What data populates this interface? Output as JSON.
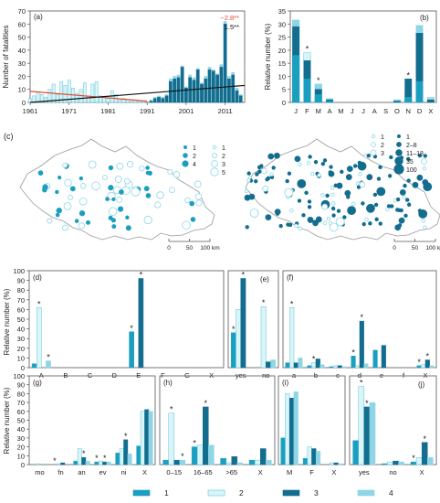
{
  "colors": {
    "c1": "#1b9fc0",
    "c2": "#d9f5f8",
    "c3": "#136d8f",
    "c4": "#8ed6e6",
    "edge2": "#5ec3d8",
    "axis": "#555555",
    "trend_black": "#111111",
    "trend_red": "#e8472a"
  },
  "legend": {
    "items": [
      {
        "label": "1",
        "color": "c1"
      },
      {
        "label": "2",
        "color": "c2"
      },
      {
        "label": "3",
        "color": "c3"
      },
      {
        "label": "4",
        "color": "c4"
      }
    ]
  },
  "panel_c": {
    "label": "(c)",
    "scalebar": {
      "ticks": [
        "0",
        "50",
        "100 km"
      ]
    },
    "map1_legend": [
      {
        "label": "1",
        "shape": "dot",
        "color": "c1"
      },
      {
        "label": "2",
        "shape": "dot",
        "color": "c1"
      },
      {
        "label": "4",
        "shape": "dot",
        "color": "c1"
      },
      {
        "label": "1",
        "shape": "ring",
        "color": "c2"
      },
      {
        "label": "2",
        "shape": "ring",
        "color": "c2"
      },
      {
        "label": "3",
        "shape": "ring",
        "color": "c2"
      },
      {
        "label": "5",
        "shape": "ring",
        "color": "c2"
      }
    ],
    "map2_legend": [
      {
        "label": "1",
        "color": "c2"
      },
      {
        "label": "2",
        "color": "c2"
      },
      {
        "label": "3",
        "color": "c2"
      },
      {
        "label": "1",
        "color": "c3"
      },
      {
        "label": "2–8",
        "color": "c3"
      },
      {
        "label": "11–18",
        "color": "c3"
      },
      {
        "label": "35",
        "color": "c3"
      },
      {
        "label": "100",
        "color": "c3"
      }
    ]
  },
  "chart_data": [
    {
      "panel": "(a)",
      "type": "bar",
      "ylabel": "Number of fatalities",
      "xlim": [
        1961,
        2016
      ],
      "ylim": [
        0,
        70
      ],
      "yticks": [
        0,
        10,
        20,
        30,
        40,
        50,
        60,
        70
      ],
      "xticks": [
        "1961",
        "1971",
        "1981",
        "1991",
        "2001",
        "2011"
      ],
      "series": [
        {
          "color": "c2",
          "x": [
            1961,
            1962,
            1963,
            1964,
            1965,
            1966,
            1967,
            1968,
            1969,
            1970,
            1971,
            1972,
            1973,
            1974,
            1975,
            1976,
            1977,
            1978,
            1979,
            1980,
            1981,
            1982,
            1983,
            1984,
            1985,
            1986,
            1987,
            1988,
            1989,
            1990
          ],
          "values": [
            3,
            5,
            8,
            6,
            4,
            10,
            14,
            6,
            16,
            13,
            17,
            11,
            7,
            10,
            15,
            5,
            14,
            16,
            5,
            4,
            3,
            9,
            6,
            2,
            3,
            2,
            1,
            2,
            1,
            1
          ]
        },
        {
          "color": "c4",
          "x": [
            1992,
            1993,
            1994,
            1995,
            1996,
            1997,
            1998,
            1999,
            2000,
            2001,
            2002,
            2003,
            2004,
            2005,
            2006,
            2007,
            2008,
            2009,
            2010,
            2011,
            2012,
            2013,
            2014,
            2015
          ],
          "values": [
            2,
            4,
            5,
            4,
            6,
            18,
            20,
            21,
            28,
            12,
            21,
            19,
            26,
            15,
            20,
            27,
            25,
            22,
            29,
            62,
            20,
            23,
            11,
            6
          ]
        },
        {
          "color": "c3",
          "x": [
            1992,
            1993,
            1994,
            1995,
            1996,
            1997,
            1998,
            1999,
            2000,
            2001,
            2002,
            2003,
            2004,
            2005,
            2006,
            2007,
            2008,
            2009,
            2010,
            2011,
            2012,
            2013,
            2014,
            2015
          ],
          "values": [
            1,
            3,
            4,
            3,
            5,
            16,
            18,
            19,
            27,
            11,
            19,
            17,
            25,
            14,
            18,
            25,
            24,
            21,
            27,
            60,
            18,
            21,
            9,
            5
          ]
        }
      ],
      "trends": [
        {
          "label": "−2.8**",
          "color": "trend_red",
          "from": [
            1961,
            8.5
          ],
          "to": [
            1991,
            1
          ]
        },
        {
          "label": "1.5**",
          "color": "trend_black",
          "from": [
            1961,
            -2
          ],
          "to": [
            2016,
            13
          ]
        }
      ]
    },
    {
      "panel": "(b)",
      "type": "bar",
      "ylabel": "Relative number (%)",
      "ylim": [
        0,
        35
      ],
      "yticks": [
        0,
        5,
        10,
        15,
        20,
        25,
        30,
        35
      ],
      "categories": [
        "J",
        "F",
        "M",
        "A",
        "M",
        "J",
        "J",
        "A",
        "S",
        "O",
        "N",
        "D",
        "X"
      ],
      "series": [
        {
          "name": "2",
          "color": "c2",
          "values": [
            31.5,
            19,
            7,
            1,
            0,
            0,
            0,
            0,
            0,
            1,
            1,
            23,
            2
          ]
        },
        {
          "name": "4",
          "color": "c4",
          "values": [
            31.5,
            16,
            7,
            1.5,
            0,
            0,
            0,
            0,
            0,
            1,
            4,
            29.5,
            1.5
          ]
        },
        {
          "name": "3",
          "color": "c3",
          "values": [
            29,
            16,
            5,
            1,
            0,
            0,
            0,
            0,
            0,
            0.5,
            9,
            26.5,
            1
          ]
        },
        {
          "name": "1",
          "color": "c1",
          "values": [
            18,
            9,
            3,
            0.5,
            0,
            0,
            0,
            0,
            0,
            0,
            2,
            8,
            0
          ]
        }
      ],
      "stars": [
        1,
        2,
        10
      ]
    },
    {
      "panel": "(d)",
      "type": "bar",
      "ylabel": "Relative number (%)",
      "ylim": [
        0,
        100
      ],
      "yticks": [
        0,
        10,
        20,
        30,
        40,
        50,
        60,
        70,
        80,
        90,
        100
      ],
      "categories": [
        "A",
        "B",
        "C",
        "D",
        "E",
        "F",
        "G",
        "X"
      ],
      "series": [
        {
          "name": "1",
          "values": [
            4,
            0,
            0,
            0,
            37,
            0,
            0,
            0
          ]
        },
        {
          "name": "2",
          "values": [
            62,
            0,
            0,
            0,
            0,
            0,
            0,
            0
          ]
        },
        {
          "name": "3",
          "values": [
            0,
            0,
            0,
            0,
            92,
            0,
            0,
            0
          ]
        },
        {
          "name": "4",
          "values": [
            7,
            0,
            0,
            0,
            0,
            0,
            0,
            0
          ]
        }
      ],
      "stars": [
        [
          0,
          1
        ],
        [
          0,
          3
        ],
        [
          4,
          0
        ],
        [
          4,
          2
        ]
      ]
    },
    {
      "panel": "(e)",
      "type": "bar",
      "ylim": [
        0,
        100
      ],
      "categories": [
        "yes",
        "no"
      ],
      "series": [
        {
          "name": "1",
          "values": [
            36,
            0
          ]
        },
        {
          "name": "2",
          "values": [
            60,
            63
          ]
        },
        {
          "name": "3",
          "values": [
            92,
            6
          ]
        },
        {
          "name": "4",
          "values": [
            0,
            8
          ]
        }
      ],
      "stars": [
        [
          0,
          0
        ],
        [
          0,
          2
        ],
        [
          1,
          1
        ]
      ]
    },
    {
      "panel": "(f)",
      "type": "bar",
      "ylim": [
        0,
        100
      ],
      "categories": [
        "a",
        "b",
        "c",
        "d",
        "e",
        "f",
        "X"
      ],
      "series": [
        {
          "name": "1",
          "values": [
            5,
            2,
            1,
            12,
            18,
            0,
            2
          ]
        },
        {
          "name": "2",
          "values": [
            62,
            5,
            2,
            2,
            0,
            0,
            3
          ]
        },
        {
          "name": "3",
          "values": [
            5,
            9,
            2,
            48,
            23,
            0,
            8
          ]
        },
        {
          "name": "4",
          "values": [
            10,
            3,
            1,
            4,
            0,
            0,
            2
          ]
        }
      ],
      "stars": [
        [
          0,
          1
        ],
        [
          1,
          1
        ],
        [
          3,
          0
        ],
        [
          3,
          2
        ],
        [
          6,
          0
        ],
        [
          6,
          2
        ]
      ]
    },
    {
      "panel": "(g)",
      "type": "bar",
      "ylabel": "Relative number (%)",
      "ylim": [
        0,
        100
      ],
      "yticks": [
        0,
        10,
        20,
        30,
        40,
        50,
        60,
        70,
        80,
        90,
        100
      ],
      "categories": [
        "mo",
        "fn",
        "an",
        "ev",
        "ni",
        "X"
      ],
      "series": [
        {
          "name": "1",
          "values": [
            0,
            0,
            4,
            3,
            13,
            21
          ]
        },
        {
          "name": "2",
          "values": [
            1,
            1,
            18,
            4,
            18,
            60
          ]
        },
        {
          "name": "3",
          "values": [
            0,
            2,
            8,
            3,
            28,
            62
          ]
        },
        {
          "name": "4",
          "values": [
            0,
            0,
            4,
            3,
            12,
            60
          ]
        }
      ],
      "stars": [
        [
          1,
          0
        ],
        [
          2,
          2
        ],
        [
          3,
          0
        ],
        [
          3,
          2
        ],
        [
          4,
          2
        ]
      ]
    },
    {
      "panel": "(h)",
      "type": "bar",
      "ylim": [
        0,
        100
      ],
      "categories": [
        "0–15",
        "16–65",
        ">65",
        "X"
      ],
      "series": [
        {
          "name": "1",
          "values": [
            5,
            20,
            7,
            5
          ]
        },
        {
          "name": "2",
          "values": [
            58,
            22,
            2,
            5
          ]
        },
        {
          "name": "3",
          "values": [
            5,
            65,
            9,
            18
          ]
        },
        {
          "name": "4",
          "values": [
            5,
            22,
            2,
            5
          ]
        }
      ],
      "stars": [
        [
          0,
          1
        ],
        [
          0,
          3
        ],
        [
          1,
          0
        ],
        [
          1,
          2
        ]
      ]
    },
    {
      "panel": "(i)",
      "type": "bar",
      "ylim": [
        0,
        100
      ],
      "categories": [
        "M",
        "F",
        "X"
      ],
      "series": [
        {
          "name": "1",
          "values": [
            30,
            7,
            0
          ]
        },
        {
          "name": "2",
          "values": [
            80,
            20,
            2
          ]
        },
        {
          "name": "3",
          "values": [
            75,
            18,
            2
          ]
        },
        {
          "name": "4",
          "values": [
            82,
            15,
            1
          ]
        }
      ],
      "stars": []
    },
    {
      "panel": "(j)",
      "type": "bar",
      "ylim": [
        0,
        100
      ],
      "categories": [
        "yes",
        "no",
        "X"
      ],
      "series": [
        {
          "name": "1",
          "values": [
            27,
            1,
            3
          ]
        },
        {
          "name": "2",
          "values": [
            88,
            3,
            8
          ]
        },
        {
          "name": "3",
          "values": [
            65,
            4,
            25
          ]
        },
        {
          "name": "4",
          "values": [
            70,
            3,
            8
          ]
        }
      ],
      "stars": [
        [
          0,
          1
        ],
        [
          0,
          2
        ],
        [
          2,
          0
        ],
        [
          2,
          2
        ]
      ]
    }
  ]
}
